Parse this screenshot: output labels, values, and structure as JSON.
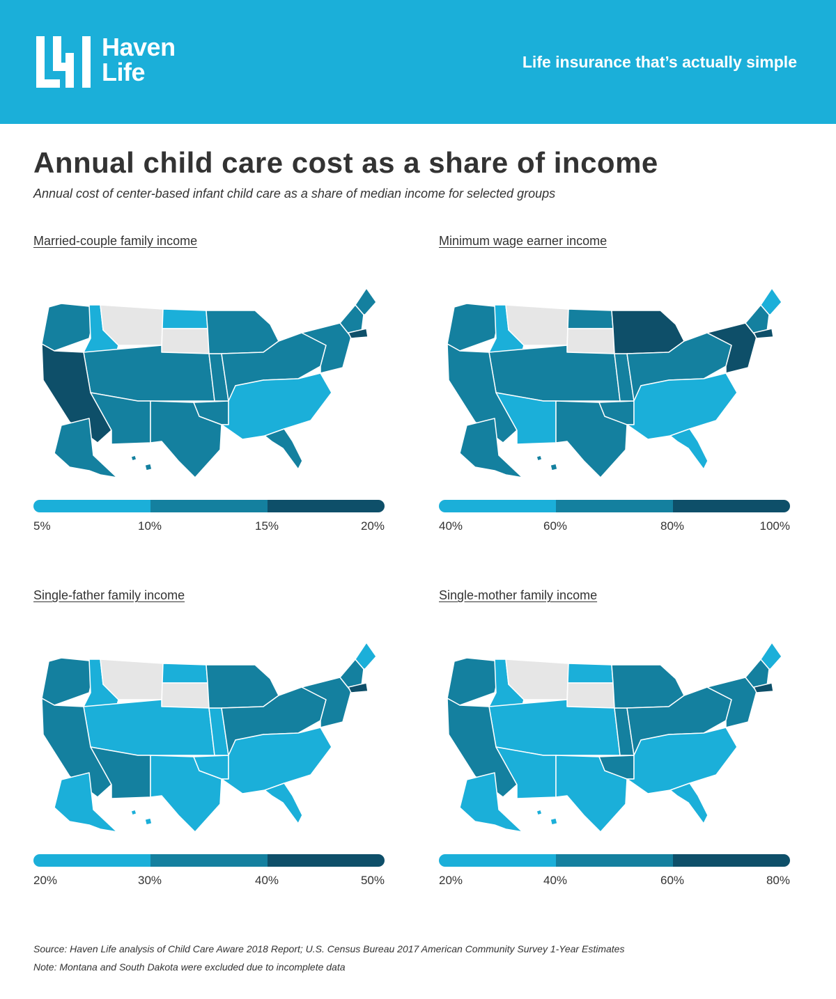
{
  "header": {
    "brand_line1": "Haven",
    "brand_line2": "Life",
    "tagline": "Life insurance that’s actually simple",
    "background_color": "#1bafd9"
  },
  "title": "Annual child care cost as a share of income",
  "subtitle": "Annual cost of center-based infant child care as a share of median income for selected groups",
  "colors": {
    "low": "#1bafd9",
    "mid": "#14809f",
    "high": "#0e4f69",
    "excluded": "#e6e6e6"
  },
  "panels": [
    {
      "title": "Married-couple family income",
      "legend_ticks": [
        "5%",
        "10%",
        "15%",
        "20%"
      ],
      "state_classes": {
        "pacific_nw": "mid",
        "idaho": "low",
        "montana": "excluded",
        "north_dakota": "low",
        "south_dakota": "excluded",
        "mountain": "mid",
        "california": "high",
        "southwest": "mid",
        "texas": "mid",
        "plains": "mid",
        "upper_midwest": "mid",
        "midwest": "mid",
        "south": "low",
        "florida": "mid",
        "mid_atlantic": "mid",
        "new_england": "mid",
        "maine": "mid",
        "massachusetts": "high",
        "alaska": "mid",
        "hawaii": "mid"
      }
    },
    {
      "title": "Minimum wage earner income",
      "legend_ticks": [
        "40%",
        "60%",
        "80%",
        "100%"
      ],
      "state_classes": {
        "pacific_nw": "mid",
        "idaho": "low",
        "montana": "excluded",
        "north_dakota": "mid",
        "south_dakota": "excluded",
        "mountain": "mid",
        "california": "mid",
        "southwest": "low",
        "texas": "mid",
        "plains": "mid",
        "upper_midwest": "high",
        "midwest": "mid",
        "south": "low",
        "florida": "low",
        "mid_atlantic": "high",
        "new_england": "mid",
        "maine": "low",
        "massachusetts": "high",
        "alaska": "mid",
        "hawaii": "mid"
      }
    },
    {
      "title": "Single-father family income",
      "legend_ticks": [
        "20%",
        "30%",
        "40%",
        "50%"
      ],
      "state_classes": {
        "pacific_nw": "mid",
        "idaho": "low",
        "montana": "excluded",
        "north_dakota": "low",
        "south_dakota": "excluded",
        "mountain": "low",
        "california": "mid",
        "southwest": "mid",
        "texas": "low",
        "plains": "low",
        "upper_midwest": "mid",
        "midwest": "mid",
        "south": "low",
        "florida": "low",
        "mid_atlantic": "mid",
        "new_england": "mid",
        "maine": "low",
        "massachusetts": "high",
        "alaska": "low",
        "hawaii": "low"
      }
    },
    {
      "title": "Single-mother family income",
      "legend_ticks": [
        "20%",
        "40%",
        "60%",
        "80%"
      ],
      "state_classes": {
        "pacific_nw": "mid",
        "idaho": "low",
        "montana": "excluded",
        "north_dakota": "low",
        "south_dakota": "excluded",
        "mountain": "low",
        "california": "mid",
        "southwest": "low",
        "texas": "low",
        "plains": "mid",
        "upper_midwest": "mid",
        "midwest": "mid",
        "south": "low",
        "florida": "low",
        "mid_atlantic": "mid",
        "new_england": "mid",
        "maine": "low",
        "massachusetts": "high",
        "alaska": "low",
        "hawaii": "low"
      }
    }
  ],
  "footnotes": {
    "source": "Source: Haven Life analysis of Child Care Aware 2018 Report; U.S. Census Bureau 2017 American Community Survey 1-Year Estimates",
    "note": "Note: Montana and South Dakota were excluded due to incomplete data"
  }
}
